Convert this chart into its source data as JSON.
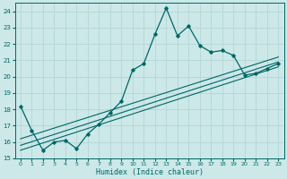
{
  "xlabel": "Humidex (Indice chaleur)",
  "bg_color": "#cce8e8",
  "grid_color": "#b8d8d8",
  "line_color": "#006666",
  "xlim": [
    -0.5,
    23.5
  ],
  "ylim": [
    15,
    24.5
  ],
  "yticks": [
    15,
    16,
    17,
    18,
    19,
    20,
    21,
    22,
    23,
    24
  ],
  "xticks": [
    0,
    1,
    2,
    3,
    4,
    5,
    6,
    7,
    8,
    9,
    10,
    11,
    12,
    13,
    14,
    15,
    16,
    17,
    18,
    19,
    20,
    21,
    22,
    23
  ],
  "main_line_x": [
    0,
    1,
    2,
    3,
    4,
    5,
    6,
    7,
    8,
    9,
    10,
    11,
    12,
    13,
    14,
    15,
    16,
    17,
    18,
    19,
    20,
    21,
    22,
    23
  ],
  "main_line_y": [
    18.2,
    16.7,
    15.5,
    16.0,
    16.1,
    15.6,
    16.5,
    17.1,
    17.8,
    18.5,
    20.4,
    20.8,
    22.6,
    24.2,
    22.5,
    23.1,
    21.9,
    21.5,
    21.6,
    21.3,
    20.1,
    20.2,
    20.5,
    20.8
  ],
  "line2_x": [
    0,
    23
  ],
  "line2_y": [
    16.2,
    21.2
  ],
  "line3_x": [
    0,
    23
  ],
  "line3_y": [
    15.5,
    20.6
  ],
  "line4_x": [
    0,
    23
  ],
  "line4_y": [
    15.8,
    20.9
  ]
}
